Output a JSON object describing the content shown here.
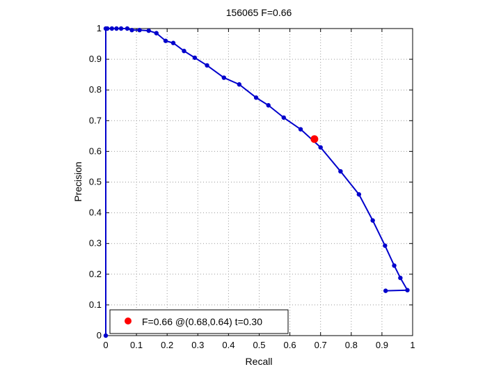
{
  "chart_data": {
    "type": "line",
    "title": "156065 F=0.66",
    "xlabel": "Recall",
    "ylabel": "Precision",
    "xlim": [
      0,
      1
    ],
    "ylim": [
      0,
      1
    ],
    "xticks": [
      "0",
      "0.1",
      "0.2",
      "0.3",
      "0.4",
      "0.5",
      "0.6",
      "0.7",
      "0.8",
      "0.9",
      "1"
    ],
    "yticks": [
      "0",
      "0.1",
      "0.2",
      "0.3",
      "0.4",
      "0.5",
      "0.6",
      "0.7",
      "0.8",
      "0.9",
      "1"
    ],
    "grid": true,
    "legend_position": "bottom-left",
    "series": [
      {
        "color": "#0000cc",
        "marker": "dot",
        "points": [
          [
            0.0,
            0.0
          ],
          [
            0.0,
            1.0
          ],
          [
            0.005,
            1.0
          ],
          [
            0.02,
            1.0
          ],
          [
            0.035,
            1.0
          ],
          [
            0.05,
            1.0
          ],
          [
            0.07,
            1.0
          ],
          [
            0.085,
            0.995
          ],
          [
            0.11,
            0.995
          ],
          [
            0.14,
            0.993
          ],
          [
            0.165,
            0.985
          ],
          [
            0.195,
            0.96
          ],
          [
            0.22,
            0.953
          ],
          [
            0.255,
            0.927
          ],
          [
            0.29,
            0.905
          ],
          [
            0.33,
            0.88
          ],
          [
            0.385,
            0.84
          ],
          [
            0.435,
            0.818
          ],
          [
            0.49,
            0.775
          ],
          [
            0.53,
            0.75
          ],
          [
            0.58,
            0.71
          ],
          [
            0.635,
            0.672
          ],
          [
            0.7,
            0.613
          ],
          [
            0.765,
            0.535
          ],
          [
            0.825,
            0.46
          ],
          [
            0.87,
            0.375
          ],
          [
            0.91,
            0.293
          ],
          [
            0.94,
            0.228
          ],
          [
            0.96,
            0.188
          ],
          [
            0.983,
            0.148
          ],
          [
            0.912,
            0.146
          ]
        ]
      }
    ],
    "highlight": {
      "x": 0.68,
      "y": 0.64,
      "color": "#ff0000"
    },
    "legend": {
      "label": "F=0.66 @(0.68,0.64) t=0.30"
    }
  }
}
